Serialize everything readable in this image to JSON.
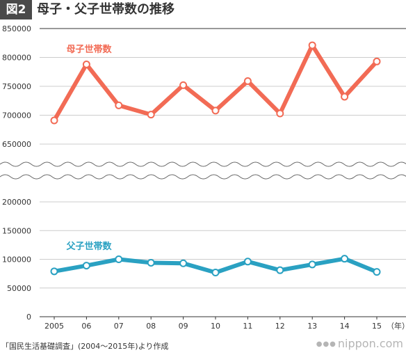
{
  "header": {
    "figure_label": "図2",
    "title": "母子・父子世帯数の推移"
  },
  "footer": {
    "source": "「国民生活基礎調査」(2004～2015年)より作成",
    "brand": "nippon.com"
  },
  "colors": {
    "mother": "#f26b55",
    "father": "#2aa1c2",
    "grid": "#cccccc",
    "axis": "#333333"
  },
  "chart_data": {
    "type": "line",
    "categories": [
      "2005",
      "06",
      "07",
      "08",
      "09",
      "10",
      "11",
      "12",
      "13",
      "14",
      "15"
    ],
    "x_unit": "（年）",
    "axis_break": true,
    "upper_ticks": [
      "650000",
      "700000",
      "750000",
      "800000",
      "850000"
    ],
    "lower_ticks": [
      "0",
      "50000",
      "100000",
      "150000",
      "200000"
    ],
    "upper_range": [
      650000,
      850000
    ],
    "lower_range": [
      0,
      200000
    ],
    "grid": true,
    "series": [
      {
        "name": "母子世帯数",
        "panel": "upper",
        "values": [
          691000,
          788000,
          717000,
          701000,
          752000,
          708000,
          759000,
          703000,
          821000,
          732000,
          793000
        ]
      },
      {
        "name": "父子世帯数",
        "panel": "lower",
        "values": [
          79000,
          89000,
          100000,
          94000,
          93000,
          77000,
          96000,
          81000,
          91000,
          101000,
          78000
        ]
      }
    ]
  }
}
